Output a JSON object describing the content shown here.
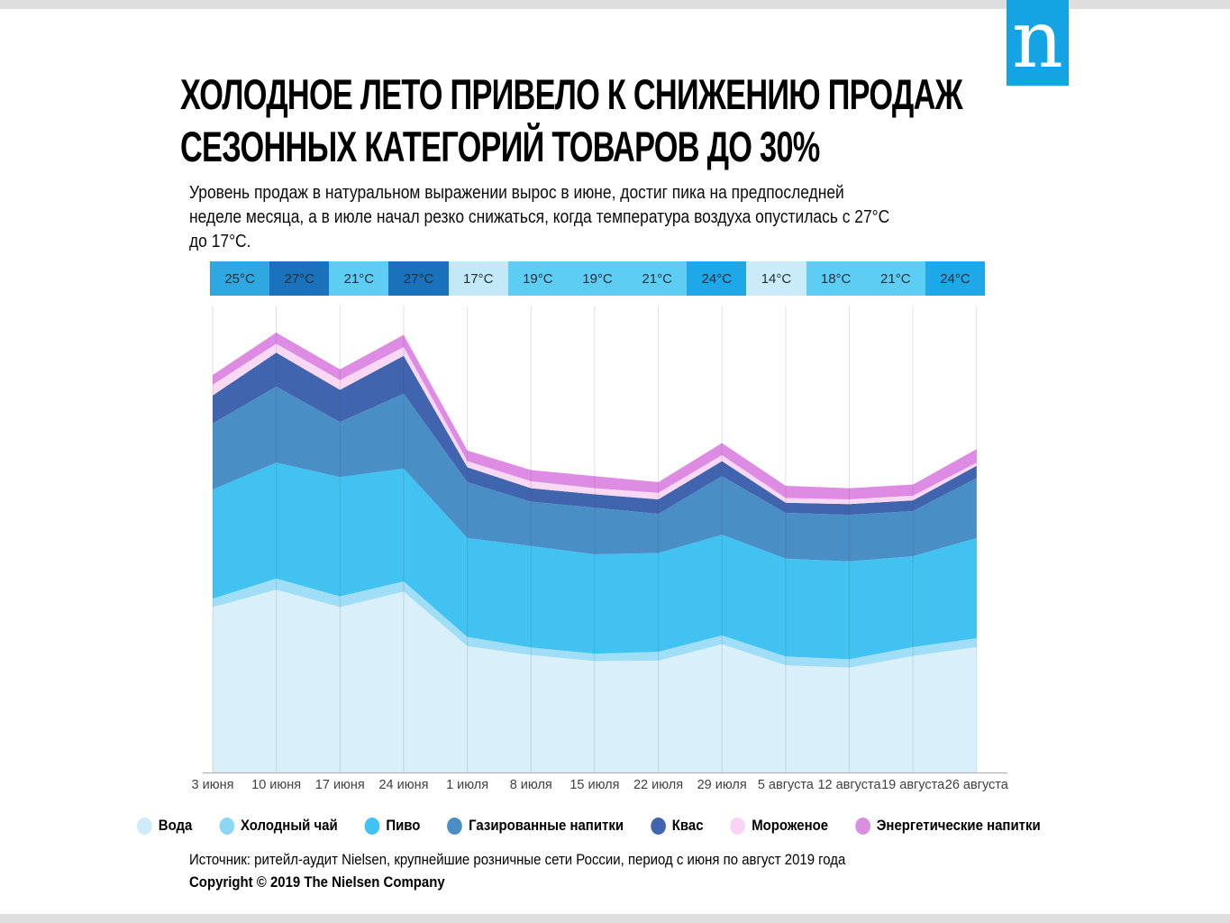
{
  "logo": {
    "letter": "n",
    "color": "#14a4e3"
  },
  "title": {
    "line1": "ХОЛОДНОЕ ЛЕТО ПРИВЕЛО К СНИЖЕНИЮ ПРОДАЖ",
    "line2": "СЕЗОННЫХ КАТЕГОРИЙ ТОВАРОВ ДО 30%"
  },
  "subtitle": {
    "lines": [
      "Уровень продаж в натуральном выражении вырос в июне, достиг пика на предпоследней",
      "неделе месяца, а в июле начал резко снижаться, когда температура воздуха опустилась с 27°C",
      "до 17°C."
    ]
  },
  "chart_data": {
    "type": "area",
    "stacked": true,
    "grid": "vertical",
    "ylim": [
      0,
      100
    ],
    "x_labels": [
      "3 июня",
      "10 июня",
      "17 июня",
      "24 июня",
      "1 июля",
      "8 июля",
      "15 июля",
      "22 июля",
      "29 июля",
      "5 августа",
      "12 августа",
      "19 августа",
      "26 августа"
    ],
    "temperatures": [
      {
        "label": "25°C",
        "color": "#2fa7e0"
      },
      {
        "label": "27°C",
        "color": "#1b72bc"
      },
      {
        "label": "21°C",
        "color": "#5ecdf4"
      },
      {
        "label": "27°C",
        "color": "#1b72bc"
      },
      {
        "label": "17°C",
        "color": "#c3e8f7"
      },
      {
        "label": "19°C",
        "color": "#5ecdf4"
      },
      {
        "label": "19°C",
        "color": "#5ecdf4"
      },
      {
        "label": "21°C",
        "color": "#5ecdf4"
      },
      {
        "label": "24°C",
        "color": "#1fa8e8"
      },
      {
        "label": "14°C",
        "color": "#c9ecf8"
      },
      {
        "label": "18°C",
        "color": "#5ecdf4"
      },
      {
        "label": "21°C",
        "color": "#5ecdf4"
      },
      {
        "label": "24°C",
        "color": "#1fa8e8"
      }
    ],
    "series": [
      {
        "key": "water",
        "name": "Вода",
        "color": "#d9f0fa",
        "legend_color": "#cfeaf8",
        "values": [
          35.5,
          39.2,
          35.5,
          38.8,
          27.1,
          25.2,
          23.9,
          24.0,
          27.5,
          23.0,
          22.5,
          25.0,
          26.9
        ]
      },
      {
        "key": "iced-tea",
        "name": "Холодный чай",
        "color": "#9fdef6",
        "legend_color": "#8bd7f4",
        "values": [
          1.8,
          2.4,
          2.3,
          2.2,
          2.0,
          1.6,
          1.6,
          1.9,
          1.9,
          1.9,
          1.8,
          1.9,
          1.9
        ]
      },
      {
        "key": "beer",
        "name": "Пиво",
        "color": "#41c2f1",
        "legend_color": "#41c2f1",
        "values": [
          23.4,
          24.9,
          25.6,
          24.2,
          21.2,
          21.8,
          21.3,
          21.2,
          21.6,
          21.0,
          21.0,
          19.5,
          21.5
        ]
      },
      {
        "key": "soft-drinks",
        "name": "Газированные напитки",
        "color": "#4a8ec6",
        "legend_color": "#4a8ec6",
        "values": [
          14.2,
          16.3,
          11.8,
          16.1,
          12.0,
          9.5,
          10.0,
          8.4,
          12.6,
          9.8,
          10.0,
          9.7,
          12.9
        ]
      },
      {
        "key": "kvass",
        "name": "Квас",
        "color": "#4164af",
        "legend_color": "#4164af",
        "values": [
          6.0,
          7.3,
          6.9,
          8.1,
          3.2,
          2.9,
          2.9,
          3.1,
          3.2,
          2.2,
          2.3,
          2.3,
          2.6
        ]
      },
      {
        "key": "ice-cream",
        "name": "Мороженое",
        "color": "#f9d8f4",
        "legend_color": "#f8d4f2",
        "values": [
          2.3,
          1.9,
          2.1,
          1.9,
          1.3,
          1.5,
          1.3,
          1.4,
          1.3,
          1.0,
          1.0,
          1.0,
          0.7
        ]
      },
      {
        "key": "energy-drinks",
        "name": "Энергетические напитки",
        "color": "#de8ce3",
        "legend_color": "#d98fdf",
        "values": [
          2.1,
          2.4,
          2.3,
          2.6,
          2.3,
          2.4,
          2.6,
          2.3,
          2.6,
          2.6,
          2.4,
          2.4,
          2.9
        ]
      }
    ]
  },
  "source": "Источник: ритейл-аудит Nielsen, крупнейшие розничные сети России, период с июня по август 2019 года",
  "copyright": "Copyright © 2019 The Nielsen Company"
}
